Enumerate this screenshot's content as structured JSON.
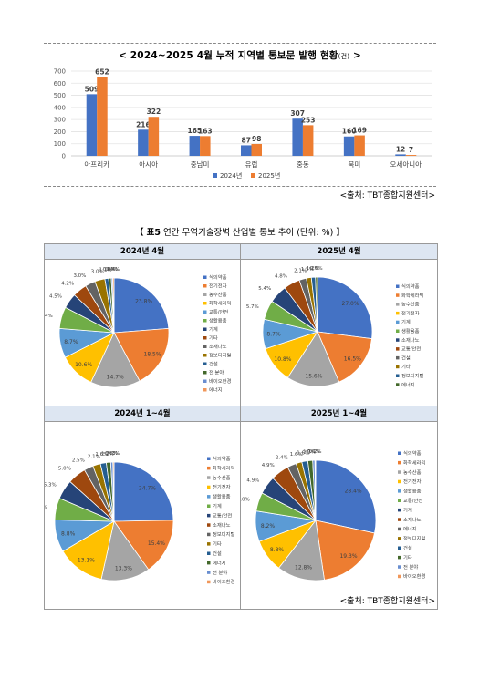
{
  "bar_title_main": "< 2024~2025 4월 누적 지역별 통보문 발행 현황",
  "bar_title_unit": "(건)",
  "bar_title_end": " >",
  "source1": "<출처: TBT종합지원센터>",
  "table_title_bracket_open": "【 ",
  "table_title_bold": "표5",
  "table_title_rest": " 연간 무역기술장벽 산업별 통보 추이 (단위: %) ",
  "table_title_bracket_close": "】",
  "source2": "<출처: TBT종합지원센터>",
  "colors": {
    "s2024": "#4472c4",
    "s2025": "#ed7d31"
  },
  "chart_data": [
    {
      "type": "bar",
      "categories": [
        "아프리카",
        "아시아",
        "중남미",
        "유럽",
        "중동",
        "북미",
        "오세아니아"
      ],
      "series": [
        {
          "name": "2024년",
          "values": [
            509,
            216,
            165,
            87,
            307,
            160,
            12
          ]
        },
        {
          "name": "2025년",
          "values": [
            652,
            322,
            163,
            98,
            253,
            169,
            7
          ]
        }
      ],
      "yticks": [
        0,
        100,
        200,
        300,
        400,
        500,
        600,
        700
      ],
      "ylim": [
        0,
        700
      ],
      "legend": "bottom"
    },
    {
      "type": "pie",
      "title": "2024년 4월",
      "labels": [
        "식의약품",
        "전기전자",
        "농수산품",
        "화학세라믹",
        "교통/안전",
        "생활용품",
        "기계",
        "기타",
        "소재나노",
        "정보디지털",
        "건설",
        "전 분야",
        "바이오환경",
        "에너지"
      ],
      "values": [
        23.8,
        18.5,
        14.7,
        10.6,
        8.7,
        6.4,
        4.5,
        4.2,
        3.0,
        3.0,
        1.1,
        0.8,
        0.4,
        0.4
      ],
      "value_labels": [
        "23.8%",
        "18.5%",
        "14.7%",
        "10.6%",
        "8.7%",
        "6.4%",
        "4.5%",
        "4.2%",
        "3.0%",
        "3.0%",
        "1.1%",
        "0.8%",
        "0.4%",
        "0.4%"
      ],
      "colors": [
        "#4472c4",
        "#ed7d31",
        "#a5a5a5",
        "#ffc000",
        "#5b9bd5",
        "#70ad47",
        "#264478",
        "#9e480e",
        "#636363",
        "#997300",
        "#255e91",
        "#43682b",
        "#698ed0",
        "#f1975a"
      ],
      "legend": "right"
    },
    {
      "type": "pie",
      "title": "2025년 4월",
      "labels": [
        "식의약품",
        "화학세라믹",
        "농수산품",
        "전기전자",
        "기계",
        "생활용품",
        "소재나노",
        "교통/안전",
        "건설",
        "기타",
        "정보디지털",
        "에너지"
      ],
      "values": [
        27.0,
        16.5,
        15.6,
        10.8,
        8.7,
        5.7,
        5.4,
        4.8,
        2.1,
        1.5,
        1.2,
        0.6
      ],
      "value_labels": [
        "27.0%",
        "16.5%",
        "15.6%",
        "10.8%",
        "8.7%",
        "5.7%",
        "5.4%",
        "4.8%",
        "2.1%",
        "1.5%",
        "1.2%",
        "0.6%"
      ],
      "colors": [
        "#4472c4",
        "#ed7d31",
        "#a5a5a5",
        "#ffc000",
        "#5b9bd5",
        "#70ad47",
        "#264478",
        "#9e480e",
        "#636363",
        "#997300",
        "#255e91",
        "#43682b"
      ],
      "legend": "right"
    },
    {
      "type": "pie",
      "title": "2024년 1~4월",
      "labels": [
        "식의약품",
        "화학세라믹",
        "농수산품",
        "전기전자",
        "생활용품",
        "기계",
        "교통/안전",
        "소재나노",
        "정보디지털",
        "기타",
        "건설",
        "에너지",
        "전 분야",
        "바이오환경"
      ],
      "values": [
        24.7,
        15.4,
        13.3,
        13.1,
        8.8,
        6.0,
        5.3,
        5.0,
        2.5,
        2.1,
        1.6,
        1.2,
        0.6,
        0.3
      ],
      "value_labels": [
        "24.7%",
        "15.4%",
        "13.3%",
        "13.1%",
        "8.8%",
        "6.0%",
        "5.3%",
        "5.0%",
        "2.5%",
        "2.1%",
        "1.6%",
        "1.2%",
        "0.6%",
        "0.3%"
      ],
      "colors": [
        "#4472c4",
        "#ed7d31",
        "#a5a5a5",
        "#ffc000",
        "#5b9bd5",
        "#70ad47",
        "#264478",
        "#9e480e",
        "#636363",
        "#997300",
        "#255e91",
        "#43682b",
        "#698ed0",
        "#f1975a"
      ],
      "legend": "right"
    },
    {
      "type": "pie",
      "title": "2025년 1~4월",
      "labels": [
        "식의약품",
        "화학세라믹",
        "농수산품",
        "전기전자",
        "생활용품",
        "교통/안전",
        "기계",
        "소재나노",
        "에너지",
        "정보디지털",
        "건설",
        "기타",
        "전 분야",
        "바이오환경"
      ],
      "values": [
        28.4,
        19.3,
        12.8,
        8.8,
        8.2,
        5.0,
        4.9,
        4.9,
        2.4,
        1.6,
        1.6,
        1.3,
        0.6,
        0.2
      ],
      "value_labels": [
        "28.4%",
        "19.3%",
        "12.8%",
        "8.8%",
        "8.2%",
        "5.0%",
        "4.9%",
        "4.9%",
        "2.4%",
        "1.6%",
        "1.6%",
        "1.3%",
        "0.6%",
        "0.2%"
      ],
      "colors": [
        "#4472c4",
        "#ed7d31",
        "#a5a5a5",
        "#ffc000",
        "#5b9bd5",
        "#70ad47",
        "#264478",
        "#9e480e",
        "#636363",
        "#997300",
        "#255e91",
        "#43682b",
        "#698ed0",
        "#f1975a"
      ],
      "legend": "right"
    }
  ]
}
